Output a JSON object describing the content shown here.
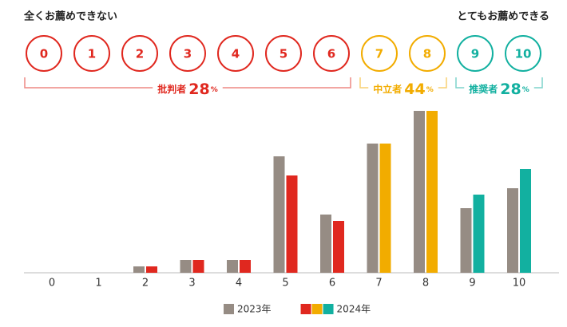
{
  "chart_data": {
    "type": "bar",
    "left_label": "全くお薦めできない",
    "right_label": "とてもお薦めできる",
    "categories": [
      "0",
      "1",
      "2",
      "3",
      "4",
      "5",
      "6",
      "7",
      "8",
      "9",
      "10"
    ],
    "category_colors": [
      "#e0281f",
      "#e0281f",
      "#e0281f",
      "#e0281f",
      "#e0281f",
      "#e0281f",
      "#e0281f",
      "#f2ac00",
      "#f2ac00",
      "#12b0a0",
      "#12b0a0"
    ],
    "groups": [
      {
        "name": "批判者",
        "value": 28,
        "unit": "%",
        "color": "#e0281f"
      },
      {
        "name": "中立者",
        "value": 44,
        "unit": "%",
        "color": "#f2ac00"
      },
      {
        "name": "推奨者",
        "value": 28,
        "unit": "%",
        "color": "#12b0a0"
      }
    ],
    "series": [
      {
        "name": "2023年",
        "color": "#968c84",
        "values": [
          0,
          0,
          8,
          16,
          16,
          146,
          73,
          162,
          203,
          81,
          106
        ]
      },
      {
        "name": "2024年",
        "values": [
          0,
          0,
          8,
          16,
          16,
          122,
          65,
          162,
          203,
          98,
          130
        ]
      }
    ],
    "ylim": [
      0,
      203
    ]
  }
}
